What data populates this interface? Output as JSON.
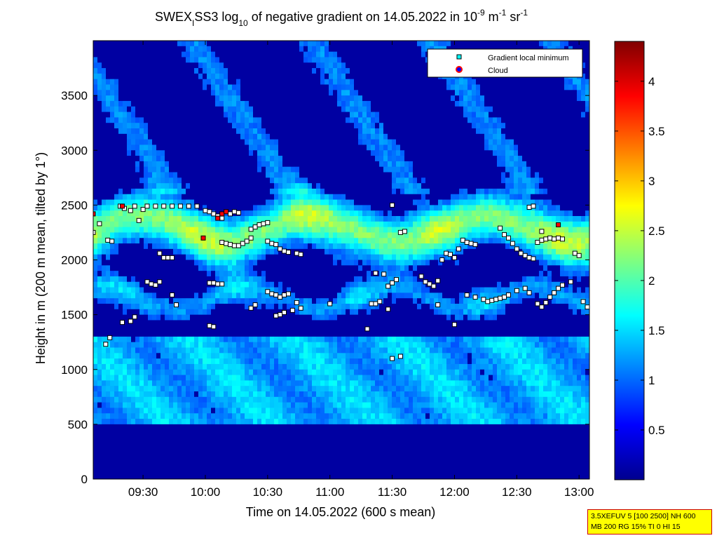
{
  "chart_data": {
    "type": "heatmap",
    "title": {
      "prefix": "SWEX",
      "sub1": "I",
      "part2": "SS3 log",
      "sub2": "10",
      "part3": " of negative gradient on 14.05.2022 in 10",
      "sup1": "-9",
      "part4": " m",
      "sup2": "-1",
      "part5": " sr",
      "sup3": "-1"
    },
    "xlabel": "Time on 14.05.2022 (600 s mean)",
    "ylabel": "Height in m (200 m mean, tilted by 1°)",
    "x_ticks": [
      "09:30",
      "10:00",
      "10:30",
      "11:00",
      "11:30",
      "12:00",
      "12:30",
      "13:00"
    ],
    "y_ticks": [
      "0",
      "500",
      "1000",
      "1500",
      "2000",
      "2500",
      "3000",
      "3500"
    ],
    "colorbar_ticks": [
      "0.5",
      "1",
      "1.5",
      "2",
      "2.5",
      "3",
      "3.5",
      "4"
    ],
    "colorbar_range": [
      0,
      4.4
    ],
    "colormap": "jet",
    "xlim": [
      "09:06",
      "13:05"
    ],
    "ylim": [
      0,
      4000
    ],
    "legend": {
      "placement": "top-right",
      "entries": [
        {
          "label": "Gradient local minimum",
          "marker": "square",
          "color": "#00ffff"
        },
        {
          "label": "Cloud",
          "marker": "circle",
          "color": "#ff0000"
        }
      ]
    },
    "gradient_minimum_series": [
      [
        "09:06",
        2250
      ],
      [
        "09:09",
        2330
      ],
      [
        "09:13",
        2180
      ],
      [
        "09:15",
        2170
      ],
      [
        "09:19",
        2490
      ],
      [
        "09:21",
        2470
      ],
      [
        "09:24",
        2450
      ],
      [
        "09:26",
        2490
      ],
      [
        "09:28",
        2360
      ],
      [
        "09:30",
        2460
      ],
      [
        "09:32",
        2490
      ],
      [
        "09:36",
        2490
      ],
      [
        "09:40",
        2490
      ],
      [
        "09:44",
        2490
      ],
      [
        "09:48",
        2490
      ],
      [
        "09:52",
        2490
      ],
      [
        "09:56",
        2490
      ],
      [
        "09:38",
        2060
      ],
      [
        "09:40",
        2020
      ],
      [
        "09:42",
        2020
      ],
      [
        "09:44",
        2020
      ],
      [
        "09:32",
        1800
      ],
      [
        "09:34",
        1780
      ],
      [
        "09:36",
        1770
      ],
      [
        "09:38",
        1800
      ],
      [
        "09:44",
        1680
      ],
      [
        "09:46",
        1590
      ],
      [
        "09:26",
        1480
      ],
      [
        "09:24",
        1440
      ],
      [
        "09:20",
        1430
      ],
      [
        "09:14",
        1290
      ],
      [
        "09:12",
        1230
      ],
      [
        "10:00",
        2450
      ],
      [
        "10:02",
        2440
      ],
      [
        "10:04",
        2420
      ],
      [
        "10:06",
        2400
      ],
      [
        "10:08",
        2380
      ],
      [
        "10:12",
        2420
      ],
      [
        "10:14",
        2440
      ],
      [
        "10:16",
        2430
      ],
      [
        "10:08",
        2160
      ],
      [
        "10:10",
        2150
      ],
      [
        "10:12",
        2140
      ],
      [
        "10:14",
        2130
      ],
      [
        "10:16",
        2130
      ],
      [
        "10:18",
        2150
      ],
      [
        "10:20",
        2170
      ],
      [
        "10:22",
        2200
      ],
      [
        "10:02",
        1790
      ],
      [
        "10:04",
        1790
      ],
      [
        "10:06",
        1780
      ],
      [
        "10:08",
        1780
      ],
      [
        "10:02",
        1400
      ],
      [
        "10:04",
        1390
      ],
      [
        "10:22",
        2280
      ],
      [
        "10:24",
        2300
      ],
      [
        "10:26",
        2320
      ],
      [
        "10:28",
        2330
      ],
      [
        "10:30",
        2340
      ],
      [
        "10:30",
        2170
      ],
      [
        "10:32",
        2150
      ],
      [
        "10:34",
        2140
      ],
      [
        "10:36",
        2100
      ],
      [
        "10:38",
        2080
      ],
      [
        "10:40",
        2070
      ],
      [
        "10:44",
        2060
      ],
      [
        "10:46",
        2050
      ],
      [
        "10:30",
        1710
      ],
      [
        "10:32",
        1690
      ],
      [
        "10:34",
        1680
      ],
      [
        "10:36",
        1660
      ],
      [
        "10:38",
        1680
      ],
      [
        "10:40",
        1690
      ],
      [
        "10:44",
        1610
      ],
      [
        "10:46",
        1560
      ],
      [
        "10:42",
        1540
      ],
      [
        "10:38",
        1520
      ],
      [
        "10:36",
        1500
      ],
      [
        "10:34",
        1490
      ],
      [
        "10:22",
        1560
      ],
      [
        "10:24",
        1590
      ],
      [
        "11:22",
        1880
      ],
      [
        "11:26",
        1870
      ],
      [
        "11:28",
        1760
      ],
      [
        "11:30",
        1790
      ],
      [
        "11:32",
        1820
      ],
      [
        "11:34",
        2250
      ],
      [
        "11:36",
        2260
      ],
      [
        "11:30",
        2500
      ],
      [
        "11:20",
        1600
      ],
      [
        "11:22",
        1600
      ],
      [
        "11:24",
        1620
      ],
      [
        "11:28",
        1550
      ],
      [
        "11:30",
        1100
      ],
      [
        "11:34",
        1120
      ],
      [
        "11:44",
        1850
      ],
      [
        "11:46",
        1800
      ],
      [
        "11:48",
        1780
      ],
      [
        "11:50",
        1760
      ],
      [
        "11:52",
        1810
      ],
      [
        "11:54",
        2000
      ],
      [
        "11:56",
        2060
      ],
      [
        "11:58",
        2050
      ],
      [
        "12:00",
        2020
      ],
      [
        "12:02",
        2100
      ],
      [
        "12:04",
        2180
      ],
      [
        "12:06",
        2160
      ],
      [
        "12:08",
        2150
      ],
      [
        "12:10",
        2140
      ],
      [
        "12:06",
        1680
      ],
      [
        "12:10",
        1660
      ],
      [
        "12:14",
        1640
      ],
      [
        "12:16",
        1620
      ],
      [
        "12:18",
        1630
      ],
      [
        "12:20",
        1640
      ],
      [
        "12:22",
        1650
      ],
      [
        "12:24",
        1660
      ],
      [
        "12:26",
        1680
      ],
      [
        "12:22",
        2290
      ],
      [
        "12:24",
        2230
      ],
      [
        "12:26",
        2200
      ],
      [
        "12:28",
        2150
      ],
      [
        "12:30",
        2100
      ],
      [
        "12:32",
        2060
      ],
      [
        "12:34",
        2040
      ],
      [
        "12:36",
        2020
      ],
      [
        "12:38",
        2010
      ],
      [
        "12:30",
        1720
      ],
      [
        "12:34",
        1740
      ],
      [
        "12:36",
        1700
      ],
      [
        "12:40",
        1600
      ],
      [
        "12:42",
        1570
      ],
      [
        "12:44",
        1610
      ],
      [
        "12:46",
        1660
      ],
      [
        "12:48",
        1700
      ],
      [
        "12:50",
        1740
      ],
      [
        "12:52",
        1770
      ],
      [
        "12:40",
        2160
      ],
      [
        "12:42",
        2180
      ],
      [
        "12:44",
        2190
      ],
      [
        "12:46",
        2200
      ],
      [
        "12:48",
        2190
      ],
      [
        "12:50",
        2200
      ],
      [
        "12:52",
        2190
      ],
      [
        "12:36",
        2480
      ],
      [
        "12:38",
        2490
      ],
      [
        "12:42",
        2260
      ],
      [
        "12:56",
        1800
      ],
      [
        "12:58",
        2060
      ],
      [
        "13:00",
        2040
      ],
      [
        "13:02",
        1620
      ],
      [
        "13:04",
        1570
      ],
      [
        "12:00",
        1410
      ],
      [
        "11:52",
        1590
      ],
      [
        "11:00",
        1600
      ],
      [
        "11:18",
        1370
      ]
    ],
    "cloud_series": [
      [
        "09:06",
        2420
      ],
      [
        "09:20",
        2490
      ],
      [
        "10:06",
        2380
      ],
      [
        "10:08",
        2420
      ],
      [
        "10:10",
        2440
      ],
      [
        "09:59",
        2200
      ],
      [
        "12:50",
        2320
      ]
    ]
  },
  "info_box": {
    "line1": "3.5XEFUV 5 [100 2500] NH 600",
    "line2": "MB 200 RG 15% TI 0 HI 15"
  }
}
